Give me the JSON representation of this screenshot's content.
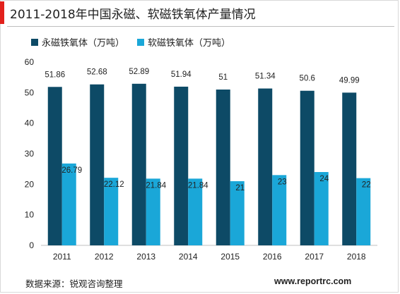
{
  "title": "2011-2018年中国永磁、软磁铁氧体产量情况",
  "source": "数据来源：锐观咨询整理",
  "website": "www.reportrc.com",
  "colors": {
    "accent": "#e2211c",
    "series1": "#0d4a66",
    "series2": "#1aa7d8"
  },
  "chart_data": {
    "type": "bar",
    "categories": [
      "2011",
      "2012",
      "2013",
      "2014",
      "2015",
      "2016",
      "2017",
      "2018"
    ],
    "series": [
      {
        "name": "永磁铁氧体（万吨）",
        "values": [
          51.86,
          52.68,
          52.89,
          51.94,
          51,
          51.34,
          50.6,
          49.99
        ],
        "labels": [
          "51.86",
          "52.68",
          "52.89",
          "51.94",
          "51",
          "51.34",
          "50.6",
          "49.99"
        ]
      },
      {
        "name": "软磁铁氧体（万吨）",
        "values": [
          26.79,
          22.12,
          21.84,
          21.84,
          21,
          23,
          24,
          22
        ],
        "labels": [
          "26.79",
          "22.12",
          "21.84",
          "21.84",
          "21",
          "23",
          "24",
          "22"
        ]
      }
    ],
    "ylim": [
      0,
      60
    ],
    "yticks": [
      "0",
      "10",
      "20",
      "30",
      "40",
      "50",
      "60"
    ],
    "legend": "top-left",
    "grid": false
  }
}
